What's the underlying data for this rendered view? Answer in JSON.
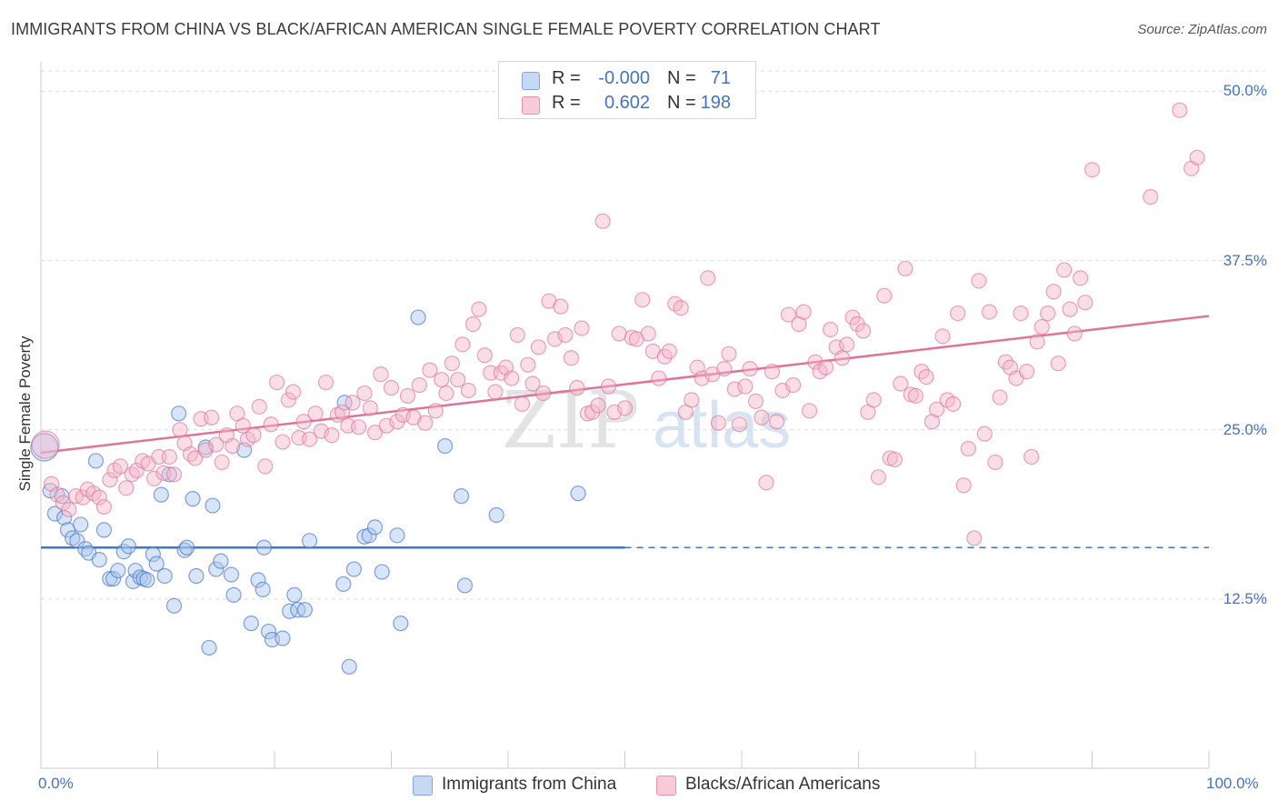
{
  "header": {
    "title": "IMMIGRANTS FROM CHINA VS BLACK/AFRICAN AMERICAN SINGLE FEMALE POVERTY CORRELATION CHART",
    "source": "Source: ZipAtlas.com"
  },
  "watermark": {
    "zip": "ZIP",
    "atlas": "atlas"
  },
  "legend": {
    "rows": [
      {
        "r_label": "R =",
        "r_value": "-0.000",
        "n_label": "N =",
        "n_value": "71",
        "color": "#a9c6ef"
      },
      {
        "r_label": "R =",
        "r_value": "0.602",
        "n_label": "N =",
        "n_value": "198",
        "color": "#f5b5c8"
      }
    ]
  },
  "bottom_legend": {
    "items": [
      {
        "label": "Immigrants from China",
        "color": "#a9c6ef"
      },
      {
        "label": "Blacks/African Americans",
        "color": "#f5b5c8"
      }
    ]
  },
  "colors": {
    "blue": "#4472c4",
    "blue_fill": "#a9c6ef",
    "pink": "#e0739a",
    "pink_fill": "#f5b5c8",
    "grid": "#dddddd"
  },
  "chart_data": {
    "type": "scatter",
    "title": "IMMIGRANTS FROM CHINA VS BLACK/AFRICAN AMERICAN SINGLE FEMALE POVERTY CORRELATION CHART",
    "xlabel": "",
    "ylabel": "Single Female Poverty",
    "xlim": [
      0,
      100
    ],
    "ylim": [
      0,
      51.5
    ],
    "x_tick_labels": [
      "0.0%",
      "100.0%"
    ],
    "y_ticks": [
      12.5,
      25.0,
      37.5,
      50.0
    ],
    "y_tick_labels": [
      "12.5%",
      "25.0%",
      "37.5%",
      "50.0%"
    ],
    "grid": true,
    "series": [
      {
        "name": "Immigrants from China",
        "color": "#4472c4",
        "fill": "#a9c6ef",
        "trend": {
          "x0": 0,
          "y0": 16.3,
          "x1": 50,
          "y1": 16.3,
          "dashed_to": 100
        },
        "points": [
          [
            0.3,
            23.7
          ],
          [
            0.8,
            20.5
          ],
          [
            1.2,
            18.8
          ],
          [
            1.8,
            20.1
          ],
          [
            2.0,
            18.5
          ],
          [
            2.3,
            17.6
          ],
          [
            2.7,
            17.0
          ],
          [
            3.1,
            16.8
          ],
          [
            3.4,
            18.0
          ],
          [
            3.8,
            16.2
          ],
          [
            4.1,
            15.9
          ],
          [
            4.7,
            22.7
          ],
          [
            5.0,
            15.4
          ],
          [
            5.4,
            17.6
          ],
          [
            5.9,
            14.0
          ],
          [
            6.2,
            14.0
          ],
          [
            6.6,
            14.6
          ],
          [
            7.1,
            16.0
          ],
          [
            7.5,
            16.4
          ],
          [
            7.9,
            13.8
          ],
          [
            8.1,
            14.6
          ],
          [
            8.5,
            14.1
          ],
          [
            8.8,
            14.0
          ],
          [
            9.1,
            13.9
          ],
          [
            9.6,
            15.8
          ],
          [
            9.9,
            15.1
          ],
          [
            10.3,
            20.2
          ],
          [
            10.6,
            14.2
          ],
          [
            11.0,
            21.7
          ],
          [
            11.4,
            12.0
          ],
          [
            11.8,
            26.2
          ],
          [
            12.3,
            16.1
          ],
          [
            12.5,
            16.3
          ],
          [
            13.0,
            19.9
          ],
          [
            13.3,
            14.2
          ],
          [
            14.1,
            23.7
          ],
          [
            14.4,
            8.9
          ],
          [
            14.7,
            19.4
          ],
          [
            15.0,
            14.7
          ],
          [
            15.4,
            15.3
          ],
          [
            16.3,
            14.3
          ],
          [
            16.5,
            12.8
          ],
          [
            17.4,
            23.5
          ],
          [
            18.0,
            10.7
          ],
          [
            18.6,
            13.9
          ],
          [
            19.0,
            13.2
          ],
          [
            19.1,
            16.3
          ],
          [
            19.5,
            10.1
          ],
          [
            19.8,
            9.5
          ],
          [
            20.7,
            9.6
          ],
          [
            21.3,
            11.6
          ],
          [
            21.7,
            12.8
          ],
          [
            22.0,
            11.7
          ],
          [
            22.6,
            11.7
          ],
          [
            23.0,
            16.8
          ],
          [
            25.9,
            13.6
          ],
          [
            26.0,
            27.0
          ],
          [
            26.4,
            7.5
          ],
          [
            26.8,
            14.7
          ],
          [
            27.7,
            17.1
          ],
          [
            28.1,
            17.2
          ],
          [
            28.6,
            17.8
          ],
          [
            29.2,
            14.5
          ],
          [
            30.5,
            17.2
          ],
          [
            30.8,
            10.7
          ],
          [
            32.3,
            33.3
          ],
          [
            34.6,
            23.8
          ],
          [
            36.0,
            20.1
          ],
          [
            36.3,
            13.5
          ],
          [
            39.0,
            18.7
          ],
          [
            46.0,
            20.3
          ]
        ]
      },
      {
        "name": "Blacks/African Americans",
        "color": "#e0739a",
        "fill": "#f5b5c8",
        "trend": {
          "x0": 0,
          "y0": 23.3,
          "x1": 100,
          "y1": 33.4
        },
        "points": [
          [
            0.4,
            23.9
          ],
          [
            0.9,
            21.0
          ],
          [
            1.4,
            20.2
          ],
          [
            1.9,
            19.6
          ],
          [
            2.4,
            19.1
          ],
          [
            3.0,
            20.1
          ],
          [
            3.6,
            20.0
          ],
          [
            4.0,
            20.6
          ],
          [
            4.5,
            20.3
          ],
          [
            5.0,
            20.0
          ],
          [
            5.4,
            19.3
          ],
          [
            5.9,
            21.3
          ],
          [
            6.3,
            22.0
          ],
          [
            6.8,
            22.3
          ],
          [
            7.3,
            20.7
          ],
          [
            7.8,
            21.7
          ],
          [
            8.2,
            22.0
          ],
          [
            8.7,
            22.7
          ],
          [
            9.2,
            22.5
          ],
          [
            9.7,
            21.4
          ],
          [
            10.1,
            23.0
          ],
          [
            10.5,
            21.8
          ],
          [
            11.0,
            23.0
          ],
          [
            11.4,
            21.7
          ],
          [
            11.9,
            25.0
          ],
          [
            12.3,
            24.0
          ],
          [
            12.8,
            23.2
          ],
          [
            13.2,
            22.9
          ],
          [
            13.7,
            25.8
          ],
          [
            14.1,
            23.5
          ],
          [
            14.6,
            25.9
          ],
          [
            15.0,
            23.9
          ],
          [
            15.5,
            22.6
          ],
          [
            15.9,
            24.6
          ],
          [
            16.4,
            23.8
          ],
          [
            16.8,
            26.2
          ],
          [
            17.3,
            25.3
          ],
          [
            17.7,
            24.3
          ],
          [
            18.2,
            24.6
          ],
          [
            18.7,
            26.7
          ],
          [
            19.2,
            22.3
          ],
          [
            19.7,
            25.4
          ],
          [
            20.2,
            28.5
          ],
          [
            20.7,
            24.1
          ],
          [
            21.2,
            27.2
          ],
          [
            21.6,
            27.8
          ],
          [
            22.1,
            24.4
          ],
          [
            22.5,
            25.6
          ],
          [
            23.0,
            24.3
          ],
          [
            23.5,
            26.2
          ],
          [
            24.0,
            24.9
          ],
          [
            24.4,
            28.5
          ],
          [
            24.9,
            24.6
          ],
          [
            25.4,
            26.1
          ],
          [
            25.8,
            26.3
          ],
          [
            26.3,
            25.3
          ],
          [
            26.7,
            27.0
          ],
          [
            27.2,
            25.2
          ],
          [
            27.7,
            27.7
          ],
          [
            28.2,
            26.6
          ],
          [
            28.6,
            24.8
          ],
          [
            29.1,
            29.1
          ],
          [
            29.6,
            25.3
          ],
          [
            30.0,
            28.1
          ],
          [
            30.5,
            25.6
          ],
          [
            31.0,
            26.1
          ],
          [
            31.4,
            27.5
          ],
          [
            31.9,
            25.9
          ],
          [
            32.4,
            28.3
          ],
          [
            32.9,
            25.5
          ],
          [
            33.3,
            29.4
          ],
          [
            33.8,
            26.4
          ],
          [
            34.3,
            28.7
          ],
          [
            34.7,
            27.7
          ],
          [
            35.2,
            29.9
          ],
          [
            35.7,
            28.7
          ],
          [
            36.1,
            31.3
          ],
          [
            36.6,
            27.9
          ],
          [
            37.0,
            32.8
          ],
          [
            37.5,
            33.9
          ],
          [
            38.0,
            30.5
          ],
          [
            38.5,
            29.2
          ],
          [
            38.9,
            27.8
          ],
          [
            39.4,
            29.2
          ],
          [
            39.8,
            29.6
          ],
          [
            40.3,
            28.8
          ],
          [
            40.8,
            32.0
          ],
          [
            41.2,
            26.9
          ],
          [
            41.7,
            29.8
          ],
          [
            42.1,
            28.4
          ],
          [
            42.6,
            31.1
          ],
          [
            43.0,
            27.7
          ],
          [
            43.5,
            34.5
          ],
          [
            44.0,
            31.7
          ],
          [
            44.5,
            34.1
          ],
          [
            44.9,
            32.0
          ],
          [
            45.4,
            30.3
          ],
          [
            45.9,
            28.1
          ],
          [
            46.3,
            32.5
          ],
          [
            46.8,
            26.2
          ],
          [
            47.2,
            26.3
          ],
          [
            47.7,
            26.8
          ],
          [
            48.1,
            40.4
          ],
          [
            48.6,
            28.2
          ],
          [
            49.1,
            26.3
          ],
          [
            49.5,
            32.1
          ],
          [
            50.0,
            26.6
          ],
          [
            50.6,
            31.8
          ],
          [
            51.0,
            31.7
          ],
          [
            51.5,
            34.6
          ],
          [
            52.0,
            32.1
          ],
          [
            52.4,
            30.8
          ],
          [
            52.9,
            28.8
          ],
          [
            53.4,
            30.4
          ],
          [
            53.8,
            30.8
          ],
          [
            54.3,
            34.3
          ],
          [
            54.8,
            34.0
          ],
          [
            55.2,
            26.3
          ],
          [
            55.7,
            27.2
          ],
          [
            56.2,
            29.6
          ],
          [
            56.6,
            28.8
          ],
          [
            57.1,
            36.2
          ],
          [
            57.5,
            29.1
          ],
          [
            58.0,
            25.5
          ],
          [
            58.5,
            29.5
          ],
          [
            58.9,
            30.6
          ],
          [
            59.4,
            28.0
          ],
          [
            59.8,
            25.4
          ],
          [
            60.3,
            28.2
          ],
          [
            60.7,
            29.5
          ],
          [
            61.2,
            27.1
          ],
          [
            61.7,
            25.9
          ],
          [
            62.1,
            21.1
          ],
          [
            62.6,
            29.3
          ],
          [
            63.0,
            25.6
          ],
          [
            63.5,
            27.9
          ],
          [
            64.0,
            33.5
          ],
          [
            64.4,
            28.3
          ],
          [
            64.9,
            32.8
          ],
          [
            65.3,
            33.7
          ],
          [
            65.8,
            26.4
          ],
          [
            66.3,
            30.0
          ],
          [
            66.7,
            29.3
          ],
          [
            67.2,
            29.6
          ],
          [
            67.6,
            32.4
          ],
          [
            68.1,
            31.1
          ],
          [
            68.6,
            30.3
          ],
          [
            69.0,
            31.3
          ],
          [
            69.5,
            33.3
          ],
          [
            69.9,
            32.8
          ],
          [
            70.4,
            32.3
          ],
          [
            70.8,
            26.3
          ],
          [
            71.3,
            27.2
          ],
          [
            71.7,
            21.5
          ],
          [
            72.2,
            34.9
          ],
          [
            72.7,
            22.9
          ],
          [
            73.1,
            22.8
          ],
          [
            73.6,
            28.4
          ],
          [
            74.0,
            36.9
          ],
          [
            74.5,
            27.6
          ],
          [
            74.9,
            27.5
          ],
          [
            75.4,
            29.3
          ],
          [
            75.8,
            28.9
          ],
          [
            76.3,
            25.6
          ],
          [
            76.7,
            26.5
          ],
          [
            77.2,
            31.9
          ],
          [
            77.6,
            27.2
          ],
          [
            78.1,
            26.9
          ],
          [
            78.5,
            33.6
          ],
          [
            79.0,
            20.9
          ],
          [
            79.4,
            23.6
          ],
          [
            79.9,
            17.0
          ],
          [
            80.3,
            36.0
          ],
          [
            80.8,
            24.7
          ],
          [
            81.2,
            33.7
          ],
          [
            81.7,
            22.6
          ],
          [
            82.1,
            27.4
          ],
          [
            82.6,
            30.0
          ],
          [
            83.0,
            29.6
          ],
          [
            83.5,
            28.8
          ],
          [
            83.9,
            33.6
          ],
          [
            84.4,
            29.3
          ],
          [
            84.8,
            23.0
          ],
          [
            85.3,
            31.5
          ],
          [
            85.7,
            32.6
          ],
          [
            86.2,
            33.6
          ],
          [
            86.7,
            35.2
          ],
          [
            87.1,
            29.9
          ],
          [
            87.6,
            36.8
          ],
          [
            88.1,
            33.9
          ],
          [
            88.5,
            32.1
          ],
          [
            89.0,
            36.2
          ],
          [
            89.4,
            34.4
          ],
          [
            90.0,
            44.2
          ],
          [
            95.0,
            42.2
          ],
          [
            97.5,
            48.6
          ],
          [
            98.5,
            44.3
          ],
          [
            99.0,
            45.1
          ]
        ]
      }
    ]
  }
}
